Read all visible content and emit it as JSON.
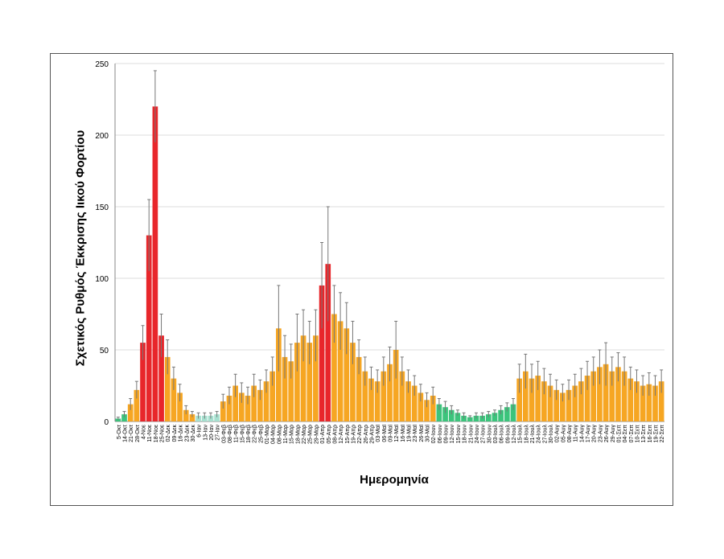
{
  "chart_data": {
    "type": "bar",
    "title": "",
    "xlabel": "Ημερομηνία",
    "ylabel": "Σχετικός Ρυθμός Έκκρισης Ιικού Φορτίου",
    "ylim": [
      0,
      250
    ],
    "yticks": [
      0,
      50,
      100,
      150,
      200,
      250
    ],
    "grid": true,
    "error_bars": true,
    "colors": {
      "red": "#e8262b",
      "orange": "#f6a623",
      "green": "#3cc47c",
      "teal": "#a6e0cf",
      "error": "#777777"
    },
    "categories": [
      "5-Οκτ",
      "14-Οκτ",
      "21-Οκτ",
      "28-Οκτ",
      "4-Νοε",
      "11-Νοε",
      "18-Νοε",
      "25-Νοε",
      "02-Δεκ",
      "09-Δεκ",
      "16-Δεκ",
      "23-Δεκ",
      "30-Δεκ",
      "6-Ιαν",
      "13-Ιαν",
      "20-Ιαν",
      "27-Ιαν",
      "03-Φεβ",
      "08-Φεβ",
      "11-Φεβ",
      "15-Φεβ",
      "18-Φεβ",
      "22-Φεβ",
      "25-Φεβ",
      "01-Μαρ",
      "04-Μαρ",
      "08-Μαρ",
      "11-Μαρ",
      "15-Μαρ",
      "18-Μαρ",
      "22-Μαρ",
      "25-Μαρ",
      "29-Μαρ",
      "01-Απρ",
      "05-Απρ",
      "08-Απρ",
      "12-Απρ",
      "15-Απρ",
      "19-Απρ",
      "22-Απρ",
      "26-Απρ",
      "29-Απρ",
      "03-Μαϊ",
      "06-Μαϊ",
      "09-Μαϊ",
      "12-Μαϊ",
      "16-Μαϊ",
      "19-Μαϊ",
      "23-Μαϊ",
      "26-Μαϊ",
      "30-Μαϊ",
      "02-Ιουν",
      "06-Ιουν",
      "09-Ιουν",
      "12-Ιουν",
      "15-Ιουν",
      "18-Ιουν",
      "21-Ιουν",
      "24-Ιουν",
      "27-Ιουν",
      "30-Ιουν",
      "03-Ιουλ",
      "06-Ιουλ",
      "09-Ιουλ",
      "12-Ιουλ",
      "15-Ιουλ",
      "18-Ιουλ",
      "21-Ιουλ",
      "24-Ιουλ",
      "27-Ιουλ",
      "30-Ιουλ",
      "02-Αυγ",
      "05-Αυγ",
      "08-Αυγ",
      "11-Αυγ",
      "14-Αυγ",
      "17-Αυγ",
      "20-Αυγ",
      "23-Αυγ",
      "26-Αυγ",
      "29-Αυγ",
      "01-Σεπ",
      "04-Σεπ",
      "07-Σεπ",
      "10-Σεπ",
      "13-Σεπ",
      "16-Σεπ",
      "19-Σεπ",
      "22-Σεπ"
    ],
    "values": [
      2,
      5,
      12,
      22,
      55,
      130,
      220,
      60,
      45,
      30,
      20,
      8,
      5,
      4,
      4,
      4,
      5,
      14,
      18,
      25,
      20,
      18,
      25,
      22,
      28,
      35,
      65,
      45,
      42,
      55,
      60,
      55,
      60,
      95,
      110,
      75,
      70,
      65,
      55,
      45,
      35,
      30,
      28,
      35,
      40,
      50,
      35,
      28,
      25,
      20,
      15,
      18,
      12,
      10,
      8,
      6,
      4,
      3,
      4,
      4,
      5,
      6,
      8,
      10,
      12,
      30,
      35,
      30,
      32,
      28,
      25,
      22,
      20,
      22,
      25,
      28,
      32,
      35,
      38,
      40,
      35,
      38,
      35,
      30,
      28,
      25,
      26,
      25,
      28
    ],
    "errors": [
      1,
      2,
      4,
      6,
      12,
      25,
      25,
      15,
      12,
      8,
      6,
      3,
      2,
      2,
      2,
      2,
      2,
      5,
      6,
      8,
      7,
      6,
      8,
      7,
      8,
      10,
      30,
      15,
      12,
      20,
      18,
      15,
      18,
      30,
      40,
      20,
      20,
      18,
      15,
      12,
      10,
      8,
      8,
      10,
      12,
      20,
      10,
      8,
      7,
      6,
      5,
      6,
      4,
      4,
      3,
      2,
      2,
      1,
      2,
      2,
      2,
      2,
      3,
      3,
      4,
      10,
      12,
      10,
      10,
      9,
      8,
      7,
      6,
      7,
      8,
      9,
      10,
      10,
      12,
      15,
      10,
      10,
      10,
      8,
      8,
      7,
      8,
      7,
      8
    ],
    "color_groups": [
      "green",
      "green",
      "orange",
      "orange",
      "red",
      "red",
      "red",
      "red",
      "orange",
      "orange",
      "orange",
      "orange",
      "orange",
      "teal",
      "teal",
      "teal",
      "teal",
      "orange",
      "orange",
      "orange",
      "orange",
      "orange",
      "orange",
      "orange",
      "orange",
      "orange",
      "orange",
      "orange",
      "orange",
      "orange",
      "orange",
      "orange",
      "orange",
      "red",
      "red",
      "orange",
      "orange",
      "orange",
      "orange",
      "orange",
      "orange",
      "orange",
      "orange",
      "orange",
      "orange",
      "orange",
      "orange",
      "orange",
      "orange",
      "orange",
      "orange",
      "orange",
      "green",
      "green",
      "green",
      "green",
      "green",
      "green",
      "green",
      "green",
      "green",
      "green",
      "green",
      "green",
      "green",
      "orange",
      "orange",
      "orange",
      "orange",
      "orange",
      "orange",
      "orange",
      "orange",
      "orange",
      "orange",
      "orange",
      "orange",
      "orange",
      "orange",
      "orange",
      "orange",
      "orange",
      "orange",
      "orange",
      "orange",
      "orange",
      "orange",
      "orange",
      "orange"
    ]
  }
}
